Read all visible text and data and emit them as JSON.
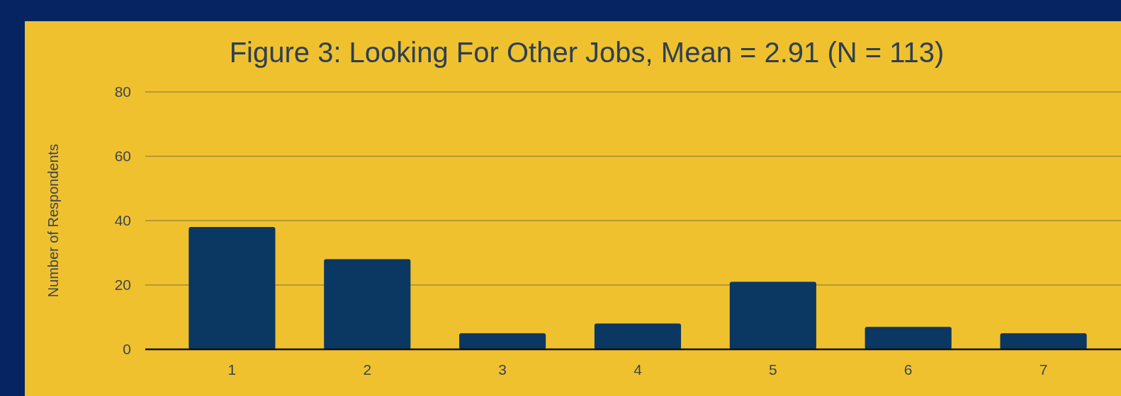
{
  "chart_data": {
    "type": "bar",
    "title": "Figure 3: Looking For Other Jobs, Mean = 2.91 (N = 113)",
    "ylabel": "Number of Respondents",
    "categories": [
      "1",
      "2",
      "3",
      "4",
      "5",
      "6",
      "7"
    ],
    "values": [
      38,
      28,
      5,
      8,
      21,
      7,
      5
    ],
    "color": "#0b3763",
    "ylim": [
      0,
      80
    ],
    "yticks": [
      0,
      20,
      40,
      60,
      80
    ],
    "grid": "y"
  }
}
